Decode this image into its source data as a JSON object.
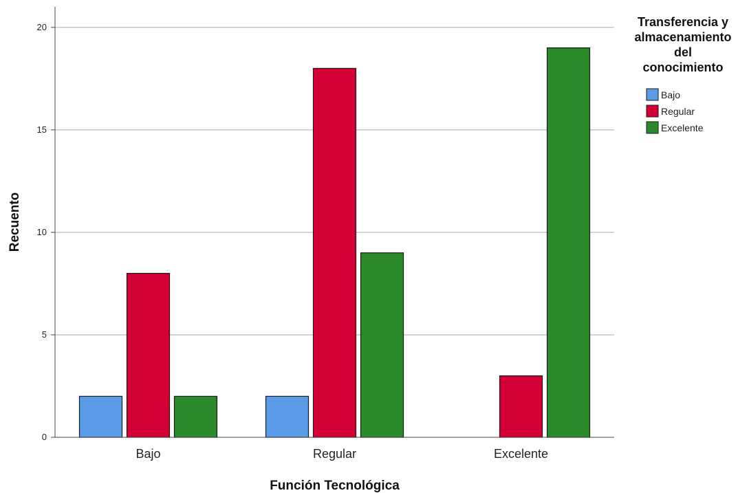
{
  "chart_data": {
    "type": "bar",
    "title": "",
    "xlabel": "Función Tecnológica",
    "ylabel": "Recuento",
    "categories": [
      "Bajo",
      "Regular",
      "Excelente"
    ],
    "ylim": [
      0,
      21
    ],
    "yticks": [
      0,
      5,
      10,
      15,
      20
    ],
    "grid": true,
    "legend": {
      "title": [
        "Transferencia y",
        "almacenamiento",
        "del",
        "conocimiento"
      ],
      "placement": "top-right"
    },
    "series": [
      {
        "name": "Bajo",
        "color": "#5b9ae6",
        "values": [
          2,
          2,
          0
        ]
      },
      {
        "name": "Regular",
        "color": "#d20034",
        "values": [
          8,
          18,
          3
        ]
      },
      {
        "name": "Excelente",
        "color": "#2a8a2a",
        "values": [
          2,
          9,
          19
        ]
      }
    ]
  }
}
